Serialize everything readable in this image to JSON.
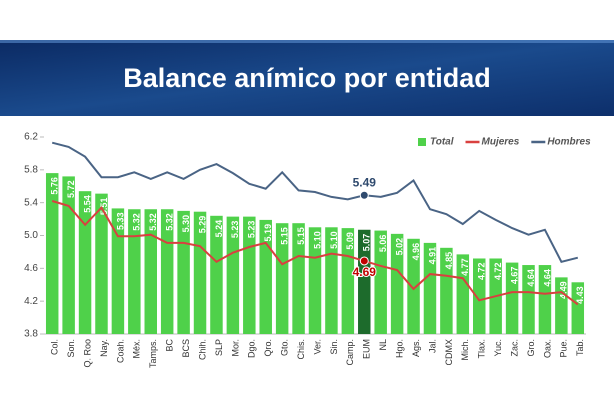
{
  "chart_data": {
    "type": "bar",
    "title": "Balance anímico por entidad",
    "categories": [
      "Col.",
      "Son.",
      "Q. Roo",
      "Nay.",
      "Coah.",
      "Méx.",
      "Tamps.",
      "BC",
      "BCS",
      "Chih.",
      "SLP",
      "Mor.",
      "Dgo.",
      "Qro.",
      "Gto.",
      "Chis.",
      "Ver.",
      "Sin.",
      "Camp.",
      "EUM",
      "NL",
      "Hgo.",
      "Ags.",
      "Jal.",
      "CDMX",
      "Mich.",
      "Tlax.",
      "Yuc.",
      "Zac.",
      "Gro.",
      "Oax.",
      "Pue.",
      "Tab."
    ],
    "series": [
      {
        "name": "Total",
        "type": "bar",
        "color": "#4fd14a",
        "values": [
          5.76,
          5.72,
          5.54,
          5.51,
          5.33,
          5.32,
          5.32,
          5.32,
          5.3,
          5.29,
          5.24,
          5.23,
          5.23,
          5.19,
          5.15,
          5.15,
          5.1,
          5.1,
          5.09,
          5.07,
          5.06,
          5.02,
          4.96,
          4.91,
          4.85,
          4.77,
          4.72,
          4.72,
          4.67,
          4.64,
          4.64,
          4.49,
          4.43
        ],
        "value_labels": [
          "5.76",
          "5.72",
          "5.54",
          "5.51",
          "5.33",
          "5.32",
          "5.32",
          "5.32",
          "5.30",
          "5.29",
          "5.24",
          "5.23",
          "5.23",
          "5.19",
          "5.15",
          "5.15",
          "5.10",
          "5.10",
          "5.09",
          "5.07",
          "5.06",
          "5.02",
          "4.96",
          "4.91",
          "4.85",
          "4.77",
          "4.72",
          "4.72",
          "4.67",
          "4.64",
          "4.64",
          "4.49",
          "4.43"
        ],
        "highlight": {
          "index": 19,
          "color": "#1d6b2c"
        }
      },
      {
        "name": "Mujeres",
        "type": "line",
        "color": "#d9403f",
        "values": [
          5.42,
          5.36,
          5.13,
          5.34,
          4.99,
          4.99,
          5.01,
          4.91,
          4.91,
          4.87,
          4.68,
          4.79,
          4.86,
          4.91,
          4.65,
          4.75,
          4.73,
          4.78,
          4.75,
          4.69,
          4.63,
          4.58,
          4.35,
          4.53,
          4.51,
          4.48,
          4.21,
          4.26,
          4.31,
          4.31,
          4.29,
          4.31,
          4.16
        ],
        "value_labels": [
          null,
          null,
          null,
          null,
          null,
          null,
          null,
          null,
          null,
          null,
          null,
          null,
          null,
          null,
          null,
          null,
          null,
          null,
          null,
          "4.69",
          null,
          null,
          null,
          null,
          null,
          null,
          null,
          null,
          null,
          null,
          null,
          null,
          null
        ],
        "label_color": "#c00000"
      },
      {
        "name": "Hombres",
        "type": "line",
        "color": "#4a6485",
        "values": [
          6.13,
          6.08,
          5.96,
          5.71,
          5.71,
          5.77,
          5.69,
          5.77,
          5.69,
          5.8,
          5.87,
          5.76,
          5.63,
          5.57,
          5.77,
          5.55,
          5.53,
          5.47,
          5.44,
          5.49,
          5.47,
          5.52,
          5.67,
          5.32,
          5.26,
          5.14,
          5.3,
          5.19,
          5.09,
          5.01,
          5.07,
          4.68,
          4.73
        ],
        "value_labels": [
          null,
          null,
          null,
          null,
          null,
          null,
          null,
          null,
          null,
          null,
          null,
          null,
          null,
          null,
          null,
          null,
          null,
          null,
          null,
          "5.49",
          null,
          null,
          null,
          null,
          null,
          null,
          null,
          null,
          null,
          null,
          null,
          null,
          null
        ],
        "label_color": "#2f4a6e"
      }
    ],
    "ylim": [
      3.8,
      6.2
    ],
    "yticks": [
      3.8,
      4.2,
      4.6,
      {
        "value": 5,
        "label": "5.0"
      },
      5.4,
      5.8,
      6.2
    ],
    "grid": false,
    "legend": "top-right"
  }
}
